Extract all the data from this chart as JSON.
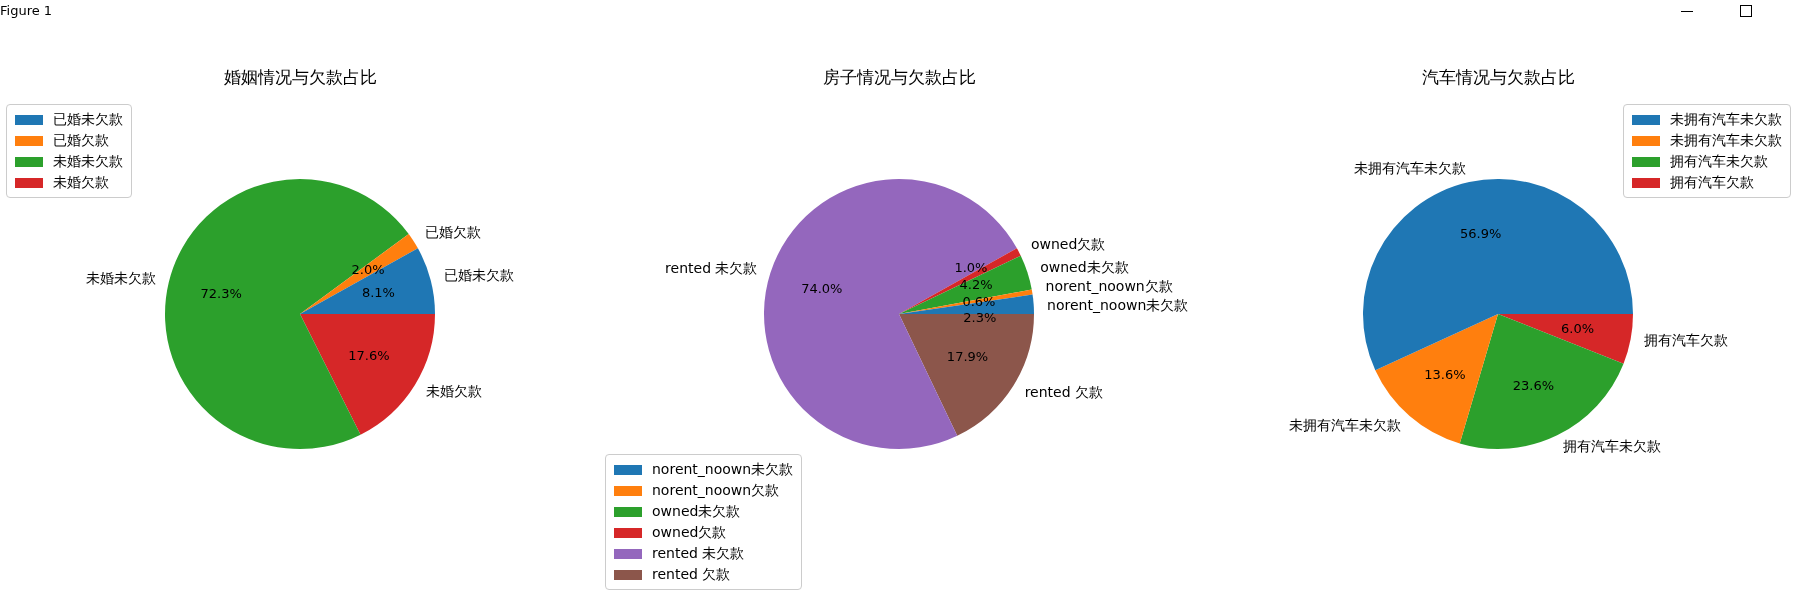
{
  "chart_data": [
    {
      "type": "pie",
      "title": "婚姻情况与欠款占比",
      "annotations": [
        "Figure 1"
      ],
      "legend": "top left",
      "categories": [
        "已婚未欠款",
        "已婚欠款",
        "未婚未欠款",
        "未婚欠款"
      ],
      "values": [
        8.1,
        2.0,
        72.3,
        17.6
      ],
      "value_labels": [
        "8.1%",
        "2.0%",
        "72.3%",
        "17.6%"
      ],
      "colors": [
        "#1f77b4",
        "#ff7f0e",
        "#2ca02c",
        "#d62728"
      ]
    },
    {
      "type": "pie",
      "title": "房子情况与欠款占比",
      "legend": "bottom left",
      "categories": [
        "norent_noown未欠款",
        "norent_noown欠款",
        "owned未欠款",
        "owned欠款",
        "rented 未欠款",
        "rented 欠款"
      ],
      "values": [
        2.3,
        0.6,
        4.2,
        1.0,
        74.0,
        17.9
      ],
      "value_labels": [
        "2.3%",
        "0.6%",
        "4.2%",
        "1.0%",
        "74.0%",
        "17.9%"
      ],
      "colors": [
        "#1f77b4",
        "#ff7f0e",
        "#2ca02c",
        "#d62728",
        "#9467bd",
        "#8c564b"
      ]
    },
    {
      "type": "pie",
      "title": "汽车情况与欠款占比",
      "legend": "top right",
      "categories": [
        "未拥有汽车未欠款",
        "未拥有汽车未欠款",
        "拥有汽车未欠款",
        "拥有汽车欠款"
      ],
      "values": [
        56.9,
        13.6,
        23.6,
        6.0
      ],
      "value_labels": [
        "56.9%",
        "13.6%",
        "23.6%",
        "6.0%"
      ],
      "colors": [
        "#1f77b4",
        "#ff7f0e",
        "#2ca02c",
        "#d62728"
      ]
    }
  ]
}
